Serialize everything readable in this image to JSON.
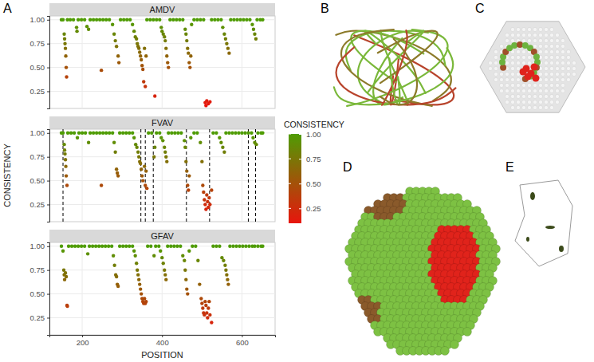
{
  "panel_labels": [
    "A",
    "B",
    "C",
    "D",
    "E"
  ],
  "chart_data": {
    "type": "scatter",
    "x_label": "POSITION",
    "y_label": "CONSISTENCY",
    "xlim": [
      118,
      683
    ],
    "xticks": [
      200,
      400,
      600
    ],
    "ylim": [
      0.07,
      1.04
    ],
    "yticks": [
      0.25,
      {
        "value": 0.5,
        "label": "0.50"
      },
      0.75,
      {
        "value": 1,
        "label": "1.00"
      }
    ],
    "grid": true,
    "colorbar": {
      "title": "CONSISTENCY",
      "range": [
        0.1,
        1.0
      ],
      "ticks": [
        0.25,
        {
          "value": 0.5,
          "label": "0.50"
        },
        0.75,
        {
          "value": 1,
          "label": "1.00"
        }
      ]
    },
    "series": [
      {
        "name": "AMDV",
        "x": [
          148,
          152,
          155,
          156,
          157,
          158,
          159,
          160,
          161,
          163,
          170,
          178,
          186,
          187,
          190,
          198,
          206,
          212,
          216,
          220,
          228,
          236,
          244,
          248,
          252,
          260,
          268,
          276,
          280,
          283,
          286,
          290,
          292,
          296,
          304,
          312,
          320,
          326,
          330,
          333,
          336,
          338,
          340,
          342,
          344,
          346,
          348,
          350,
          352,
          354,
          356,
          358,
          360,
          362,
          370,
          378,
          382,
          386,
          394,
          398,
          400,
          403,
          406,
          408,
          410,
          412,
          414,
          416,
          420,
          428,
          436,
          444,
          452,
          458,
          460,
          462,
          464,
          466,
          468,
          470,
          472,
          474,
          480,
          488,
          496,
          504,
          508,
          510,
          512,
          516,
          520,
          524,
          532,
          540,
          548,
          552,
          556,
          559,
          562,
          565,
          568,
          572,
          580,
          588,
          596,
          604,
          612,
          620,
          626,
          629,
          632,
          635,
          638,
          646,
          652
        ],
        "values": [
          1,
          1,
          0.85,
          0.8,
          0.75,
          0.7,
          0.62,
          0.5,
          0.4,
          1,
          1,
          1,
          0.92,
          0.88,
          1,
          1,
          1,
          0.93,
          0.9,
          1,
          1,
          1,
          1,
          0.47,
          1,
          1,
          1,
          0.95,
          0.85,
          0.78,
          0.72,
          0.62,
          0.55,
          1,
          1,
          1,
          1,
          0.95,
          0.88,
          0.82,
          0.8,
          0.75,
          0.72,
          0.7,
          0.66,
          0.62,
          0.58,
          0.52,
          0.48,
          0.35,
          0.7,
          0.3,
          0.62,
          1,
          1,
          1,
          0.2,
          1,
          1,
          0.92,
          0.88,
          0.85,
          0.82,
          0.78,
          0.7,
          0.62,
          0.55,
          0.5,
          1,
          1,
          1,
          1,
          1,
          0.9,
          0.85,
          0.78,
          0.7,
          0.65,
          0.55,
          0.5,
          0.62,
          0.95,
          1,
          1,
          1,
          1,
          0.13,
          0.1,
          0.15,
          0.12,
          0.14,
          1,
          1,
          1,
          1,
          0.92,
          0.85,
          0.8,
          0.75,
          0.7,
          0.65,
          1,
          1,
          1,
          1,
          1,
          1,
          1,
          0.95,
          0.9,
          0.85,
          0.8,
          1,
          1,
          1
        ]
      },
      {
        "name": "FVAV",
        "x": [
          148,
          152,
          155,
          156,
          157,
          158,
          159,
          160,
          162,
          164,
          172,
          180,
          188,
          192,
          200,
          208,
          216,
          220,
          228,
          236,
          244,
          248,
          252,
          260,
          268,
          276,
          280,
          283,
          286,
          288,
          290,
          294,
          302,
          310,
          318,
          326,
          330,
          334,
          337,
          340,
          342,
          344,
          346,
          348,
          350,
          352,
          356,
          358,
          360,
          362,
          366,
          374,
          380,
          382,
          386,
          394,
          398,
          402,
          406,
          408,
          410,
          412,
          416,
          424,
          432,
          440,
          448,
          456,
          458,
          460,
          462,
          464,
          466,
          468,
          472,
          480,
          488,
          496,
          500,
          502,
          504,
          506,
          508,
          510,
          512,
          514,
          516,
          518,
          520,
          524,
          528,
          536,
          544,
          548,
          552,
          556,
          560,
          568,
          576,
          584,
          592,
          600,
          608,
          616,
          624,
          628,
          632,
          636,
          640,
          648,
          652
        ],
        "values": [
          1,
          1,
          0.88,
          0.82,
          0.78,
          0.72,
          0.65,
          0.55,
          0.45,
          1,
          1,
          1,
          0.95,
          1,
          1,
          1,
          0.9,
          1,
          1,
          1,
          1,
          0.45,
          1,
          1,
          1,
          1,
          0.9,
          0.8,
          0.62,
          0.58,
          0.55,
          1,
          1,
          1,
          1,
          1,
          0.95,
          0.88,
          0.85,
          0.8,
          0.75,
          0.7,
          0.68,
          0.62,
          0.55,
          0.5,
          0.65,
          0.45,
          0.6,
          0.42,
          1,
          1,
          0.75,
          0.85,
          1,
          1,
          0.95,
          0.92,
          0.85,
          0.8,
          0.75,
          0.7,
          1,
          1,
          1,
          1,
          1,
          0.92,
          0.85,
          0.7,
          0.6,
          0.45,
          0.4,
          0.55,
          0.95,
          1,
          1,
          0.9,
          0.7,
          0.45,
          0.38,
          0.3,
          0.25,
          0.2,
          0.35,
          0.28,
          0.22,
          0.32,
          0.25,
          0.4,
          1,
          1,
          0.95,
          0.9,
          0.85,
          0.8,
          1,
          1,
          1,
          1,
          1,
          1,
          1,
          1,
          1,
          0.95,
          0.9,
          0.88,
          1,
          1,
          1
        ],
        "vlines": [
          152,
          347,
          358,
          378,
          461,
          519,
          616,
          634
        ]
      },
      {
        "name": "GFAV",
        "x": [
          148,
          152,
          154,
          155,
          156,
          158,
          160,
          162,
          163,
          166,
          174,
          182,
          190,
          198,
          206,
          214,
          218,
          226,
          234,
          242,
          250,
          258,
          266,
          274,
          278,
          281,
          284,
          286,
          288,
          290,
          294,
          302,
          310,
          318,
          326,
          330,
          333,
          336,
          338,
          340,
          342,
          344,
          346,
          348,
          350,
          352,
          354,
          356,
          358,
          360,
          364,
          372,
          380,
          384,
          392,
          396,
          400,
          403,
          406,
          408,
          410,
          414,
          422,
          430,
          438,
          446,
          452,
          456,
          458,
          460,
          462,
          464,
          468,
          476,
          484,
          490,
          494,
          498,
          500,
          502,
          504,
          506,
          508,
          510,
          512,
          514,
          516,
          518,
          520,
          524,
          528,
          536,
          544,
          550,
          554,
          558,
          560,
          562,
          564,
          566,
          570,
          578,
          586,
          594,
          602,
          610,
          618,
          626,
          632,
          640,
          648,
          652
        ],
        "values": [
          1,
          0.95,
          0.75,
          0.7,
          0.65,
          0.72,
          0.68,
          0.38,
          0.37,
          1,
          1,
          1,
          1,
          1,
          1,
          0.92,
          1,
          1,
          1,
          1,
          1,
          1,
          1,
          1,
          0.9,
          0.8,
          0.7,
          0.68,
          0.6,
          0.58,
          1,
          1,
          1,
          1,
          1,
          0.95,
          0.9,
          0.82,
          0.75,
          0.7,
          0.65,
          0.6,
          0.55,
          0.5,
          0.45,
          0.42,
          0.4,
          0.45,
          0.4,
          0.42,
          1,
          1,
          0.9,
          1,
          1,
          0.95,
          0.88,
          0.82,
          0.75,
          0.7,
          0.65,
          1,
          1,
          1,
          1,
          1,
          0.9,
          0.85,
          0.75,
          0.65,
          0.55,
          0.5,
          0.95,
          1,
          1,
          0.85,
          0.6,
          0.45,
          0.4,
          0.35,
          0.3,
          0.28,
          0.42,
          0.38,
          0.3,
          0.25,
          0.35,
          0.42,
          0.28,
          0.2,
          1,
          1,
          1,
          0.88,
          0.85,
          0.8,
          0.75,
          0.7,
          0.65,
          0.6,
          1,
          1,
          1,
          1,
          1,
          1,
          1,
          1,
          1,
          1,
          1,
          1
        ]
      }
    ]
  }
}
